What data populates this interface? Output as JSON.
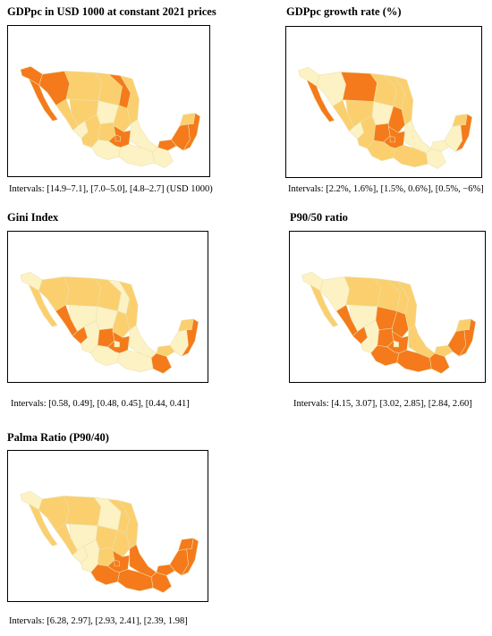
{
  "colors": {
    "light": "#fdf2c4",
    "medium": "#fbcf6e",
    "dark": "#f57a1b",
    "border": "#e8e2b0"
  },
  "panels": [
    {
      "title": "GDPpc in USD 1000 at constant 2021 prices",
      "intervals": "Intervals: [14.9–7.1], [7.0–5.0], [4.8–2.7] (USD 1000)",
      "regions": {
        "northwest": "dark",
        "baja": "dark",
        "sonora": "dark",
        "chihuahua": "medium",
        "coahuila": "medium",
        "nuevoleon": "dark",
        "tamaulipas": "medium",
        "sinaloa": "medium",
        "durango": "medium",
        "zacatecas": "light",
        "sanluis": "medium",
        "nayarit": "light",
        "jalisco": "medium",
        "bajio": "medium",
        "centro": "dark",
        "cdmx": "dark",
        "veracruz": "light",
        "guerrero": "light",
        "oaxaca": "light",
        "chiapas": "light",
        "tabasco": "dark",
        "campeche": "dark",
        "yucatan": "medium",
        "quintanaroo": "dark"
      }
    },
    {
      "title": "GDPpc growth rate (%)",
      "intervals": "Intervals: [2.2%, 1.6%], [1.5%, 0.6%], [0.5%, −6%]",
      "regions": {
        "northwest": "light",
        "baja": "dark",
        "sonora": "light",
        "chihuahua": "dark",
        "coahuila": "medium",
        "nuevoleon": "medium",
        "tamaulipas": "medium",
        "sinaloa": "medium",
        "durango": "medium",
        "zacatecas": "light",
        "sanluis": "dark",
        "nayarit": "light",
        "jalisco": "medium",
        "bajio": "dark",
        "centro": "dark",
        "cdmx": "dark",
        "veracruz": "light",
        "guerrero": "medium",
        "oaxaca": "medium",
        "chiapas": "light",
        "tabasco": "light",
        "campeche": "light",
        "yucatan": "medium",
        "quintanaroo": "dark"
      }
    },
    {
      "title": "Gini Index",
      "intervals": "Intervals: [0.58, 0.49], [0.48, 0.45], [0.44, 0.41]",
      "regions": {
        "northwest": "light",
        "baja": "medium",
        "sonora": "medium",
        "chihuahua": "medium",
        "coahuila": "medium",
        "nuevoleon": "light",
        "tamaulipas": "medium",
        "sinaloa": "dark",
        "durango": "light",
        "zacatecas": "light",
        "sanluis": "medium",
        "nayarit": "dark",
        "jalisco": "light",
        "bajio": "dark",
        "centro": "dark",
        "cdmx": "light",
        "veracruz": "light",
        "guerrero": "light",
        "oaxaca": "light",
        "chiapas": "dark",
        "tabasco": "medium",
        "campeche": "light",
        "yucatan": "medium",
        "quintanaroo": "dark"
      }
    },
    {
      "title": "P90/50 ratio",
      "intervals": "Intervals: [4.15, 3.07], [3.02, 2.85], [2.84, 2.60]",
      "regions": {
        "northwest": "light",
        "baja": "medium",
        "sonora": "light",
        "chihuahua": "medium",
        "coahuila": "medium",
        "nuevoleon": "medium",
        "tamaulipas": "medium",
        "sinaloa": "dark",
        "durango": "light",
        "zacatecas": "dark",
        "sanluis": "dark",
        "nayarit": "dark",
        "jalisco": "light",
        "bajio": "dark",
        "centro": "dark",
        "cdmx": "light",
        "veracruz": "medium",
        "guerrero": "dark",
        "oaxaca": "dark",
        "chiapas": "dark",
        "tabasco": "medium",
        "campeche": "dark",
        "yucatan": "medium",
        "quintanaroo": "dark"
      }
    },
    {
      "title": "Palma Ratio (P90/40)",
      "intervals": "Intervals: [6.28, 2.97], [2.93, 2.41], [2.39, 1.98]",
      "regions": {
        "northwest": "light",
        "baja": "medium",
        "sonora": "medium",
        "chihuahua": "medium",
        "coahuila": "light",
        "nuevoleon": "medium",
        "tamaulipas": "medium",
        "sinaloa": "medium",
        "durango": "light",
        "zacatecas": "medium",
        "sanluis": "medium",
        "nayarit": "light",
        "jalisco": "light",
        "bajio": "medium",
        "centro": "dark",
        "cdmx": "dark",
        "veracruz": "dark",
        "guerrero": "dark",
        "oaxaca": "dark",
        "chiapas": "dark",
        "tabasco": "dark",
        "campeche": "dark",
        "yucatan": "dark",
        "quintanaroo": "dark"
      }
    }
  ]
}
